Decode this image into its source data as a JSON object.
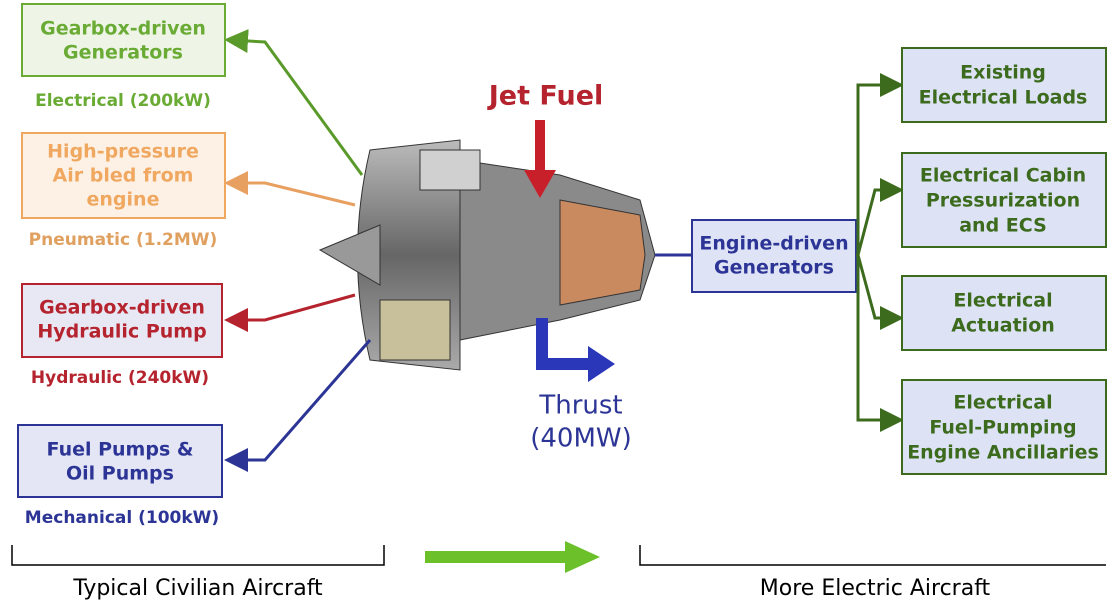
{
  "left_systems": [
    {
      "box": [
        "Gearbox-driven",
        "Generators"
      ],
      "label": "Electrical (200kW)"
    },
    {
      "box": [
        "High-pressure",
        "Air bled from",
        "engine"
      ],
      "label": "Pneumatic (1.2MW)"
    },
    {
      "box": [
        "Gearbox-driven",
        "Hydraulic Pump"
      ],
      "label": "Hydraulic (240kW)"
    },
    {
      "box": [
        "Fuel Pumps &",
        "Oil Pumps"
      ],
      "label": "Mechanical (100kW)"
    }
  ],
  "fuel": "Jet Fuel",
  "thrust": [
    "Thrust",
    "(40MW)"
  ],
  "generator": [
    "Engine-driven",
    "Generators"
  ],
  "right_loads": [
    [
      "Existing",
      "Electrical Loads"
    ],
    [
      "Electrical Cabin",
      "Pressurization",
      "and ECS"
    ],
    [
      "Electrical",
      "Actuation"
    ],
    [
      "Electrical",
      "Fuel-Pumping",
      "Engine Ancillaries"
    ]
  ],
  "footer": {
    "left": "Typical Civilian Aircraft",
    "right": "More Electric Aircraft"
  }
}
